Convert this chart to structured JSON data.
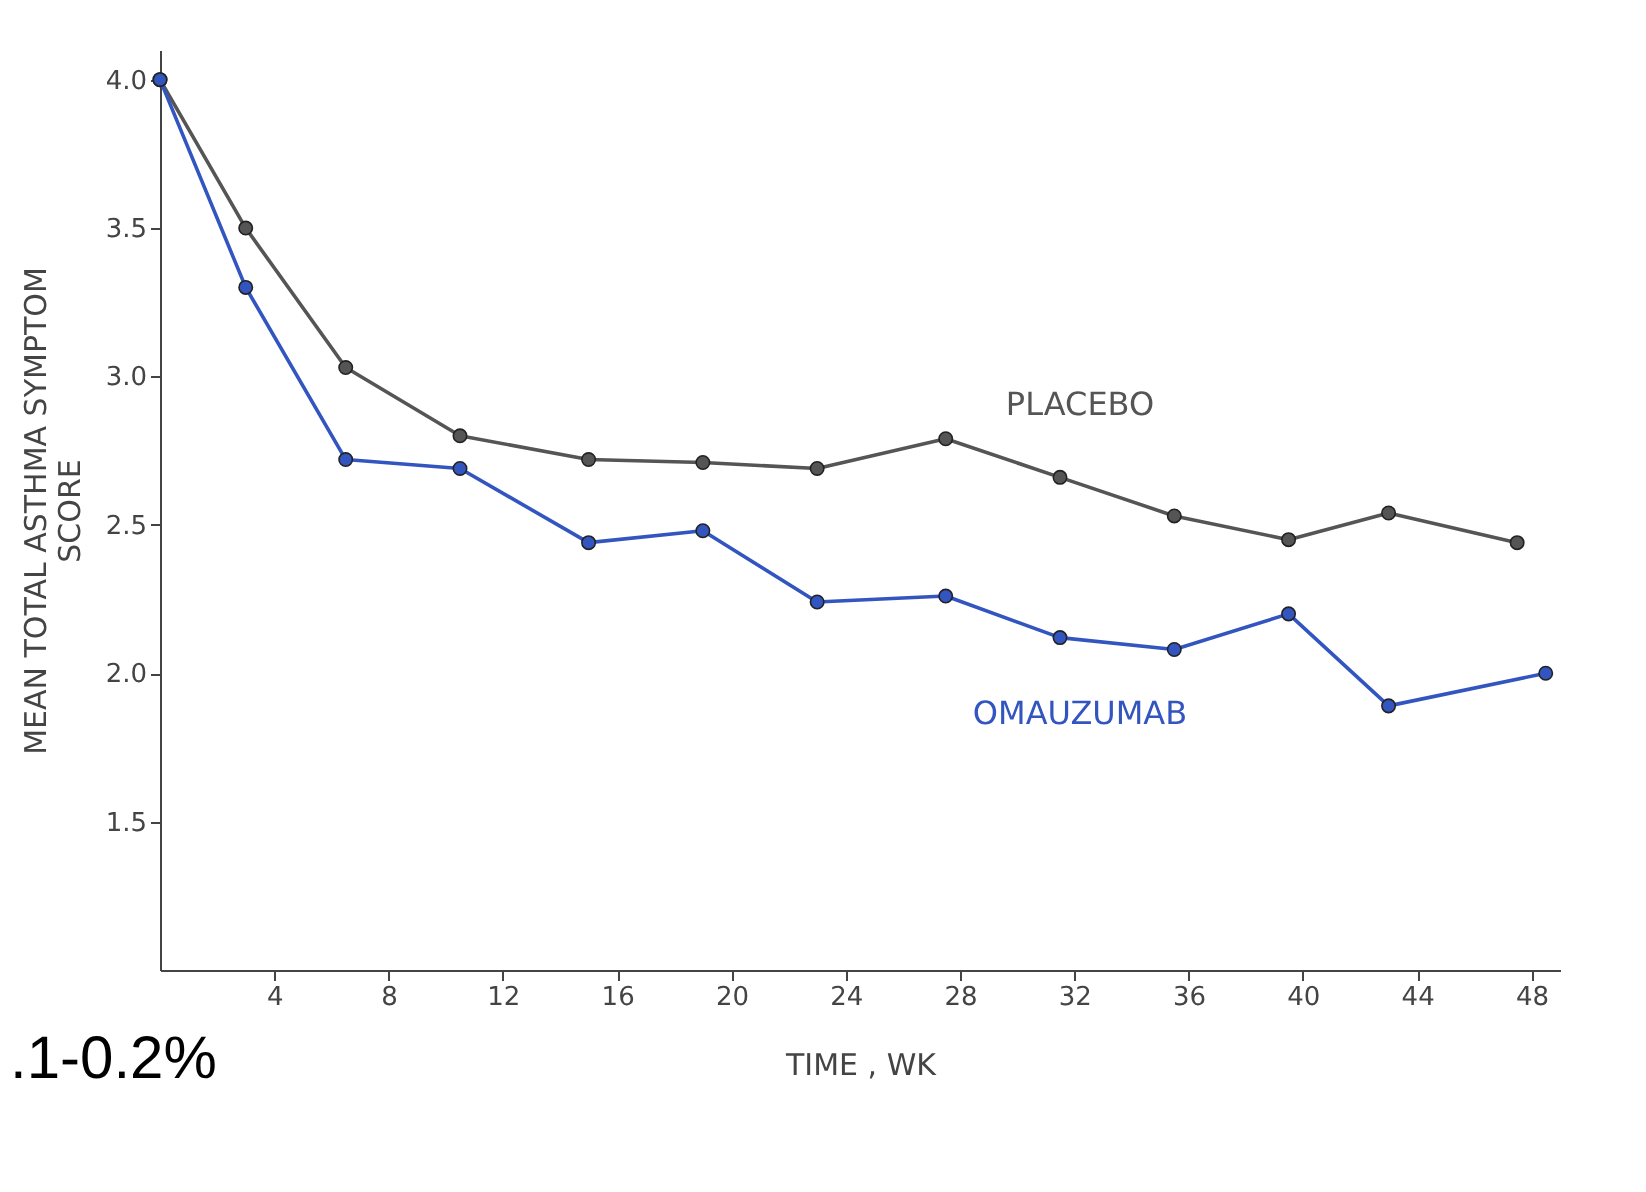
{
  "chart_data": {
    "type": "line",
    "xlabel": "TIME , WK",
    "ylabel": "MEAN TOTAL ASTHMA SYMPTOM\nSCORE",
    "x": [
      0,
      3,
      6.5,
      10.5,
      15,
      19,
      23,
      27.5,
      31.5,
      35.5,
      39.5,
      43,
      47.5
    ],
    "series": [
      {
        "name": "PLACEBO",
        "color": "#555555",
        "values": [
          4.0,
          3.5,
          3.03,
          2.8,
          2.72,
          2.71,
          2.69,
          2.79,
          2.66,
          2.53,
          2.45,
          2.54,
          2.44
        ]
      },
      {
        "name": "OMAUZUMAB",
        "color": "#3355c0",
        "x": [
          0,
          3,
          6.5,
          10.5,
          15,
          19,
          23,
          27.5,
          31.5,
          35.5,
          39.5,
          43,
          48.5
        ],
        "values": [
          4.0,
          3.3,
          2.72,
          2.69,
          2.44,
          2.48,
          2.24,
          2.26,
          2.12,
          2.08,
          2.2,
          1.89,
          2.0
        ]
      }
    ],
    "xlim": [
      0,
      49
    ],
    "xticks": [
      4,
      8,
      12,
      16,
      20,
      24,
      28,
      32,
      36,
      40,
      44,
      48
    ],
    "ylim": [
      1.0,
      4.1
    ],
    "yticks": [
      1.5,
      {
        "value": 2,
        "label": "2.0"
      },
      2.5,
      {
        "value": 3,
        "label": "3.0"
      },
      3.5,
      {
        "value": 4,
        "label": "4.0"
      }
    ],
    "grid": false,
    "marker": "circle",
    "line_style": "solid",
    "annotations": [
      ".1-0.2%"
    ]
  }
}
